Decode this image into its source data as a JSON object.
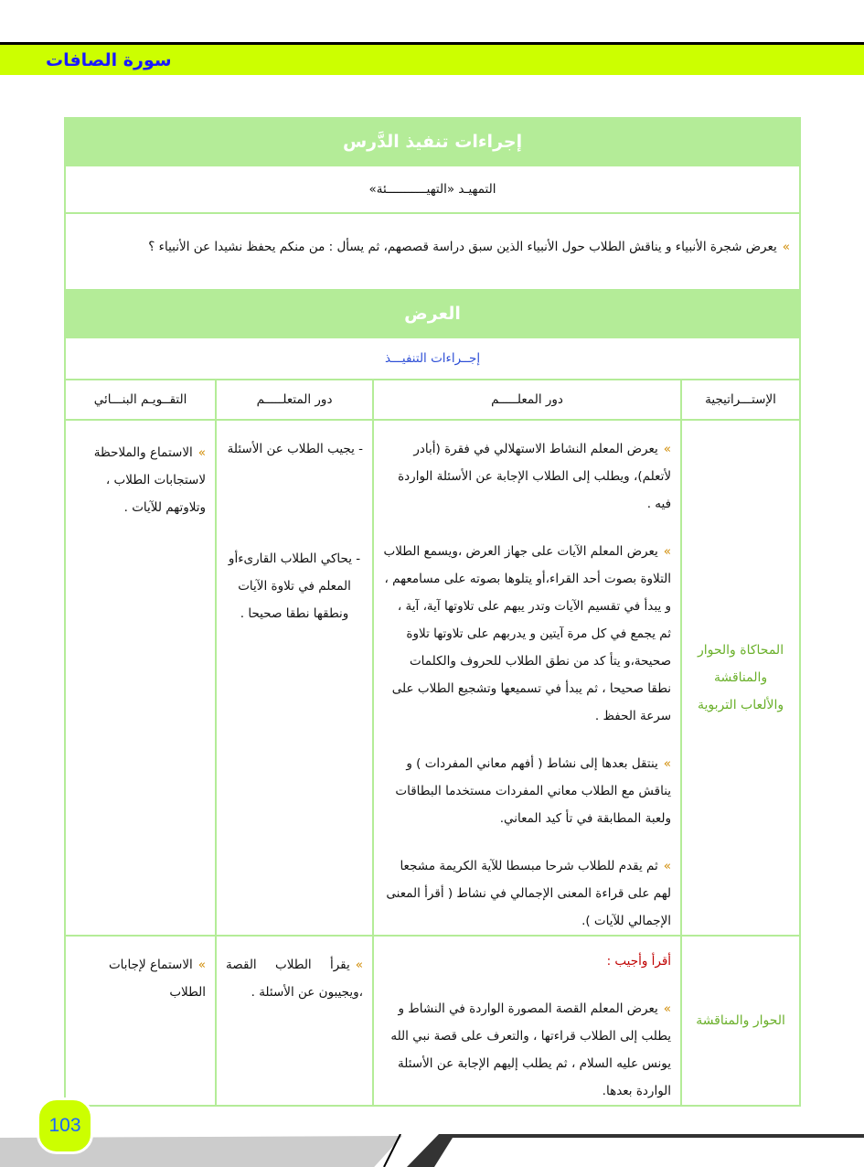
{
  "header": {
    "surah_title": "سورة الصافات"
  },
  "lesson": {
    "title": "إجراءات تنفيذ الدَّرس",
    "warmup_title": "التمهيـد «التهيـــــــــــئة»",
    "warmup_text": "يعرض شجرة الأنبياء و يناقش الطلاب حول الأنبياء الذين  سبق دراسة قصصهم، ثم يسأل : من منكم يحفظ نشيدا عن الأنبياء ؟",
    "presentation_title": "العرض",
    "procedures_title": "إجــراءات التنفيـــذ",
    "columns": [
      "الإستـــراتيجية",
      "دور المعلـــــم",
      "دور المتعلـــــم",
      "التقــويـم البنـــائي"
    ],
    "rows": [
      {
        "strategy": "المحاكاة والحوار والمناقشة والألعاب التربوية",
        "teacher": [
          "يعرض المعلم النشاط الاستهلالي في فقرة (أبادر لأتعلم)، ويطلب إلى الطلاب الإجابة عن الأسئلة الواردة فيه .",
          "يعرض المعلم الآيات على جهاز العرض ،ويسمع الطلاب التلاوة بصوت أحد القراء،أو يتلوها بصوته على مسامعهم ، و يبدأ في تقسيم الآيات وتدر يبهم على تلاوتها آية، آية ، ثم يجمع في كل مرة آيتين و يدربهم على تلاوتها تلاوة صحيحة،و يتأ كد من نطق الطلاب للحروف والكلمات نطقا صحيحا ، ثم يبدأ في تسميعها وتشجيع الطلاب على سرعة الحفظ .",
          "ينتقل بعدها إلى نشاط ( أفهم معاني المفردات ) و يناقش مع الطلاب معاني المفردات مستخدما البطاقات ولعبة المطابقة في تأ كيد المعاني.",
          "ثم يقدم للطلاب شرحا مبسطا للآية الكريمة مشجعا لهم على قراءة المعنى الإجمالي في نشاط ( أقرأ المعنى الإجمالي للآيات )."
        ],
        "learner": [
          "- يجيب الطلاب عن الأسئلة",
          "- يحاكي الطلاب القارىءأو المعلم في تلاوة الآيات ونطقها نطقا صحيحا ."
        ],
        "evaluation": "الاستماع  والملاحظة لاستجابات الطلاب ، وتلاوتهم للآيات ."
      },
      {
        "strategy": "الحوار والمناقشة",
        "teacher_heading": "أقرأ وأجيب :",
        "teacher": [
          "يعرض المعلم القصة المصورة الواردة في النشاط و يطلب إلى الطلاب قراءتها ، والتعرف على قصة نبي الله يونس عليه السلام ، ثم يطلب إليهم الإجابة عن الأسئلة الواردة بعدها."
        ],
        "learner": [
          "يقرأ الطلاب القصة ،ويجيبون عن الأسئلة ."
        ],
        "evaluation": "الاستماع لإجابات الطلاب"
      }
    ],
    "bullet": "»"
  },
  "footer": {
    "page_number": "103"
  },
  "colors": {
    "band": "#ccff00",
    "table_green": "#b4ec98",
    "strategy_text": "#6ab02a",
    "heading_blue": "#2e4fd6",
    "heading_red": "#c00000"
  }
}
